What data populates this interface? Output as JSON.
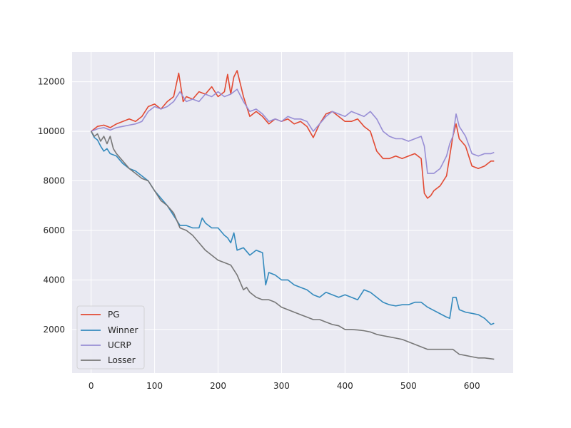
{
  "chart_data": {
    "type": "line",
    "title": "",
    "xlabel": "",
    "ylabel": "",
    "xlim": [
      -30,
      665
    ],
    "ylim": [
      240,
      13200
    ],
    "xticks": [
      0,
      100,
      200,
      300,
      400,
      500,
      600
    ],
    "yticks": [
      2000,
      4000,
      6000,
      8000,
      10000,
      12000
    ],
    "grid": true,
    "legend_position": "lower-left",
    "series": [
      {
        "name": "PG",
        "color": "#e24a33",
        "x": [
          0,
          10,
          20,
          30,
          40,
          50,
          60,
          70,
          80,
          90,
          100,
          110,
          120,
          130,
          138,
          145,
          150,
          160,
          170,
          180,
          190,
          200,
          210,
          215,
          220,
          225,
          230,
          240,
          250,
          260,
          270,
          280,
          290,
          300,
          310,
          320,
          330,
          340,
          350,
          360,
          370,
          380,
          390,
          400,
          410,
          420,
          430,
          440,
          450,
          460,
          470,
          480,
          490,
          500,
          510,
          520,
          525,
          530,
          535,
          540,
          550,
          560,
          565,
          570,
          575,
          580,
          590,
          600,
          610,
          620,
          630,
          635
        ],
        "values": [
          10000,
          10200,
          10250,
          10150,
          10300,
          10400,
          10500,
          10400,
          10600,
          11000,
          11100,
          10900,
          11200,
          11400,
          12350,
          11200,
          11400,
          11300,
          11600,
          11500,
          11800,
          11400,
          11600,
          12300,
          11500,
          12200,
          12450,
          11400,
          10600,
          10800,
          10600,
          10300,
          10500,
          10400,
          10500,
          10300,
          10400,
          10200,
          9750,
          10300,
          10700,
          10800,
          10600,
          10400,
          10400,
          10500,
          10200,
          10000,
          9200,
          8900,
          8900,
          9000,
          8900,
          9000,
          9100,
          8900,
          7500,
          7300,
          7400,
          7600,
          7800,
          8200,
          9000,
          9800,
          10300,
          9700,
          9400,
          8600,
          8500,
          8600,
          8800,
          8800
        ]
      },
      {
        "name": "Winner",
        "color": "#348abd",
        "x": [
          0,
          5,
          10,
          15,
          20,
          25,
          30,
          40,
          50,
          60,
          70,
          80,
          90,
          100,
          110,
          120,
          130,
          140,
          150,
          160,
          170,
          175,
          180,
          190,
          200,
          210,
          215,
          220,
          225,
          230,
          240,
          250,
          260,
          270,
          275,
          280,
          290,
          300,
          310,
          320,
          330,
          340,
          350,
          360,
          370,
          380,
          390,
          400,
          410,
          420,
          430,
          440,
          450,
          460,
          470,
          480,
          490,
          500,
          510,
          520,
          530,
          560,
          565,
          570,
          575,
          580,
          590,
          600,
          610,
          620,
          630,
          635
        ],
        "values": [
          10000,
          9750,
          9650,
          9400,
          9200,
          9300,
          9100,
          9000,
          8700,
          8500,
          8400,
          8200,
          8000,
          7600,
          7300,
          7000,
          6600,
          6200,
          6200,
          6100,
          6100,
          6500,
          6300,
          6100,
          6100,
          5800,
          5700,
          5500,
          5900,
          5200,
          5300,
          5000,
          5200,
          5100,
          3800,
          4300,
          4200,
          4000,
          4000,
          3800,
          3700,
          3600,
          3400,
          3300,
          3500,
          3400,
          3300,
          3400,
          3300,
          3200,
          3600,
          3500,
          3300,
          3100,
          3000,
          2950,
          3000,
          3000,
          3100,
          3100,
          2900,
          2500,
          2450,
          3300,
          3300,
          2800,
          2700,
          2650,
          2600,
          2450,
          2200,
          2250
        ]
      },
      {
        "name": "UCRP",
        "color": "#988ed5",
        "x": [
          0,
          10,
          20,
          30,
          40,
          50,
          60,
          70,
          80,
          90,
          100,
          110,
          120,
          130,
          140,
          150,
          160,
          170,
          180,
          190,
          200,
          210,
          220,
          230,
          240,
          250,
          260,
          270,
          280,
          290,
          300,
          310,
          320,
          330,
          340,
          350,
          360,
          370,
          380,
          390,
          400,
          410,
          420,
          430,
          440,
          450,
          460,
          470,
          480,
          490,
          500,
          510,
          520,
          525,
          530,
          540,
          550,
          560,
          565,
          570,
          575,
          580,
          590,
          600,
          610,
          620,
          630,
          635
        ],
        "values": [
          10000,
          10100,
          10150,
          10050,
          10150,
          10200,
          10250,
          10300,
          10400,
          10800,
          11000,
          10900,
          11000,
          11200,
          11600,
          11200,
          11300,
          11200,
          11500,
          11400,
          11600,
          11400,
          11500,
          11700,
          11200,
          10800,
          10900,
          10700,
          10400,
          10500,
          10400,
          10600,
          10500,
          10500,
          10400,
          10000,
          10300,
          10600,
          10800,
          10700,
          10600,
          10800,
          10700,
          10600,
          10800,
          10500,
          10000,
          9800,
          9700,
          9700,
          9600,
          9700,
          9800,
          9400,
          8300,
          8300,
          8500,
          9000,
          9500,
          9800,
          10700,
          10200,
          9800,
          9100,
          9000,
          9100,
          9100,
          9150
        ]
      },
      {
        "name": "Losser",
        "color": "#777777",
        "x": [
          0,
          5,
          10,
          15,
          20,
          25,
          30,
          35,
          40,
          50,
          60,
          70,
          80,
          90,
          100,
          110,
          120,
          130,
          140,
          150,
          160,
          170,
          180,
          190,
          200,
          210,
          220,
          230,
          240,
          245,
          250,
          260,
          270,
          280,
          290,
          300,
          310,
          320,
          330,
          340,
          350,
          360,
          370,
          380,
          390,
          400,
          410,
          420,
          430,
          440,
          450,
          460,
          470,
          480,
          490,
          500,
          510,
          520,
          530,
          540,
          550,
          560,
          570,
          580,
          590,
          600,
          610,
          620,
          630,
          635
        ],
        "values": [
          10000,
          9800,
          9900,
          9600,
          9800,
          9500,
          9800,
          9300,
          9100,
          8800,
          8500,
          8300,
          8100,
          8000,
          7600,
          7200,
          7000,
          6700,
          6100,
          6000,
          5800,
          5500,
          5200,
          5000,
          4800,
          4700,
          4600,
          4200,
          3600,
          3700,
          3500,
          3300,
          3200,
          3200,
          3100,
          2900,
          2800,
          2700,
          2600,
          2500,
          2400,
          2400,
          2300,
          2200,
          2150,
          2000,
          2000,
          1980,
          1950,
          1900,
          1800,
          1750,
          1700,
          1650,
          1600,
          1500,
          1400,
          1300,
          1200,
          1200,
          1200,
          1200,
          1200,
          1000,
          950,
          900,
          850,
          850,
          820,
          800
        ]
      }
    ]
  }
}
